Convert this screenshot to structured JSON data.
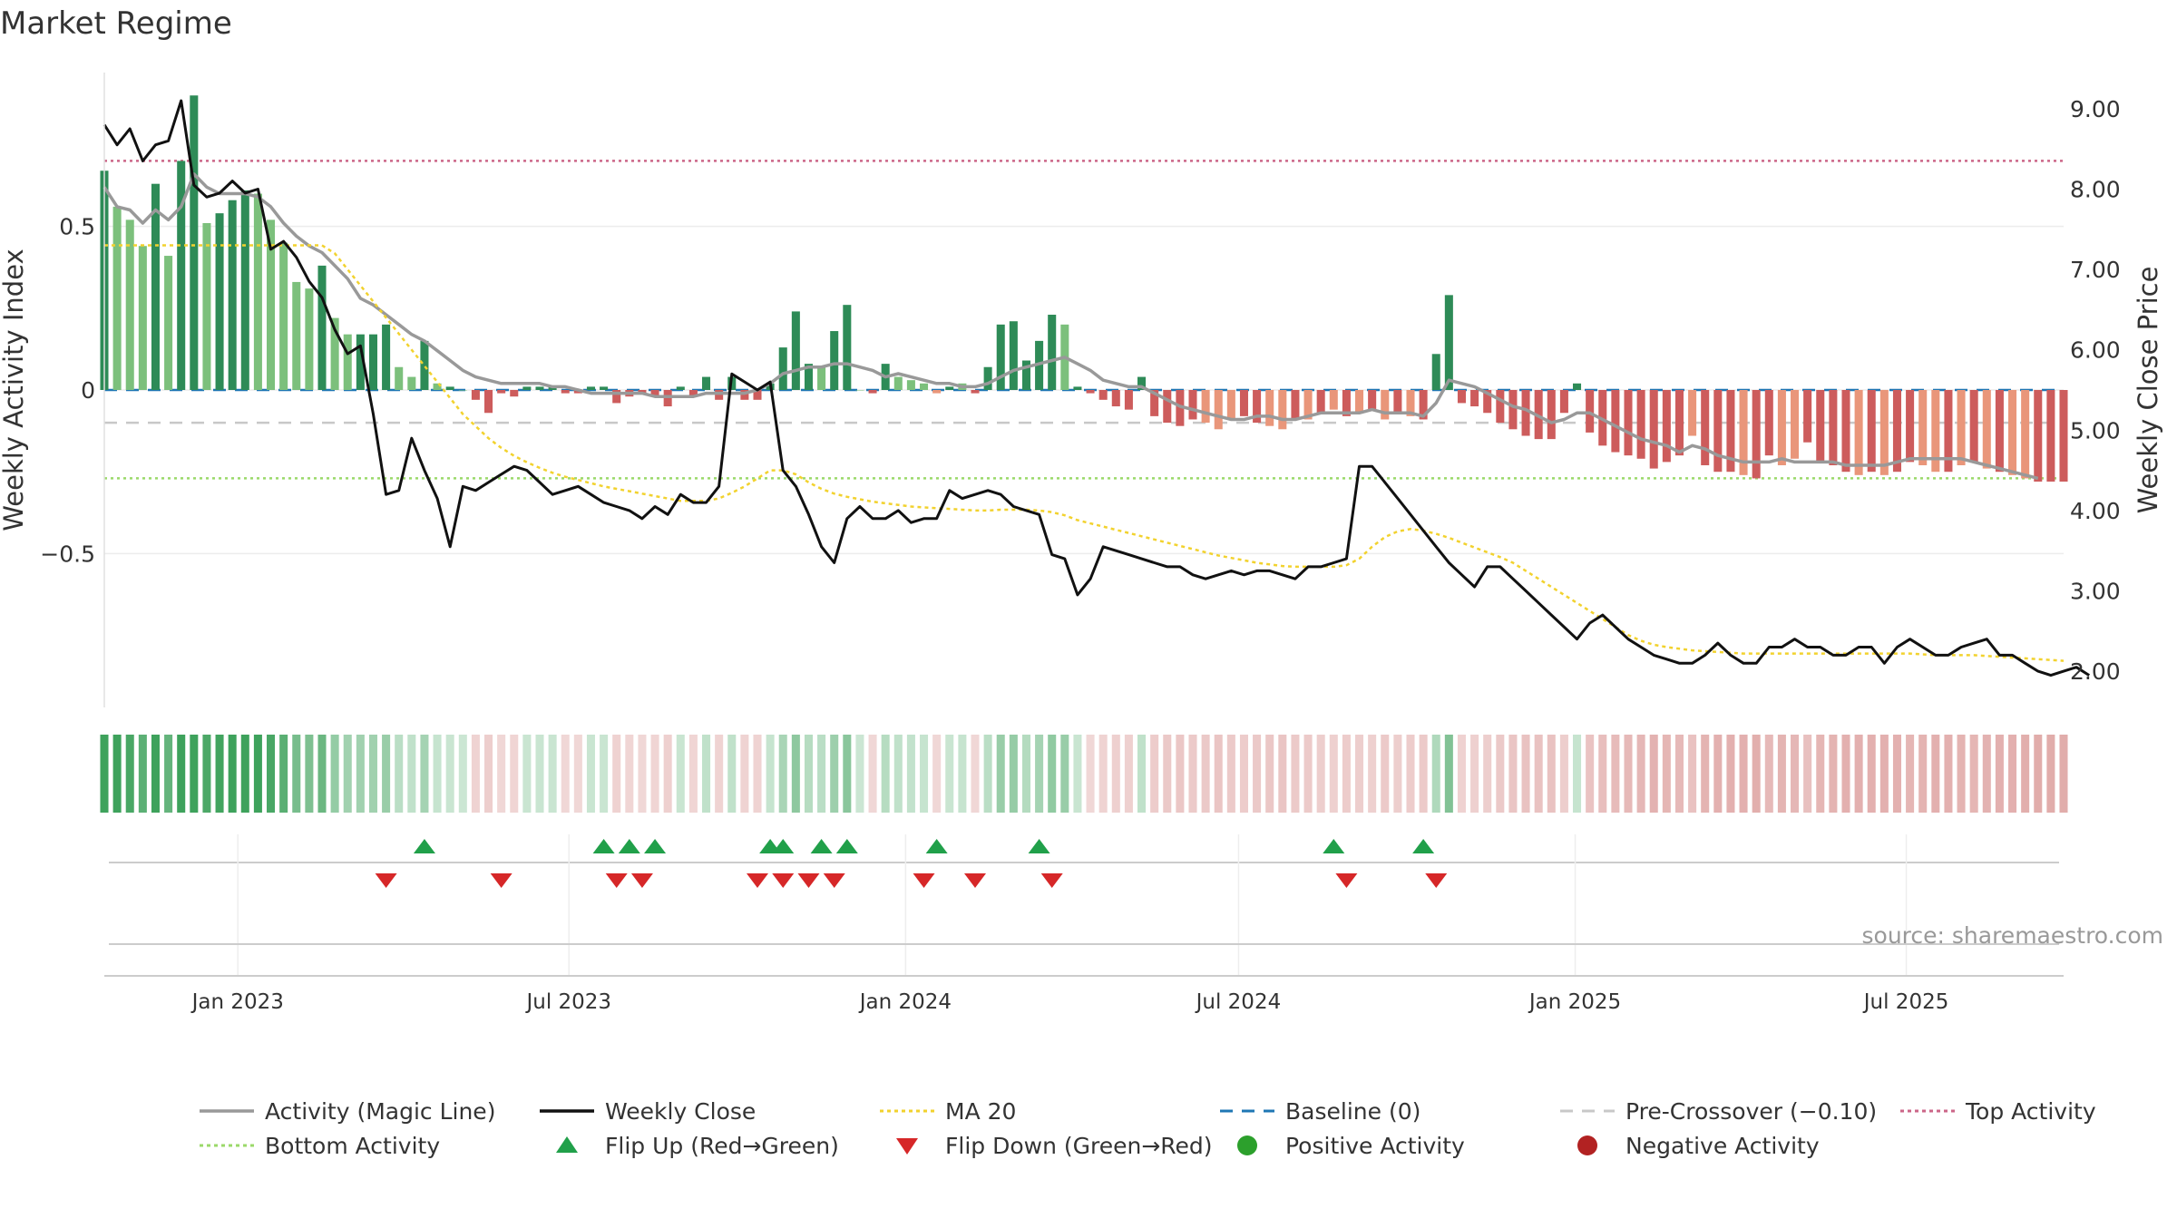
{
  "title": "Market Regime",
  "source": "source: sharemaestro.com",
  "chart_data": {
    "type": "bar",
    "left_axis": {
      "label": "Weekly Activity Index",
      "ylim": [
        -0.97,
        0.97
      ],
      "ticks": [
        0.5,
        0,
        -0.5
      ],
      "tick_labels": [
        "0.5",
        "0",
        "−0.5"
      ]
    },
    "right_axis": {
      "label": "Weekly Close Price",
      "ylim": [
        1.55,
        9.45
      ],
      "ticks": [
        2,
        3,
        4,
        5,
        6,
        7,
        8,
        9
      ],
      "tick_labels": [
        "2.00",
        "3.00",
        "4.00",
        "5.00",
        "6.00",
        "7.00",
        "8.00",
        "9.00"
      ]
    },
    "x_axis": {
      "start": "2022-10-20",
      "end": "2025-09-25",
      "ticks": [
        "2023-01-01",
        "2023-07-01",
        "2024-01-01",
        "2024-07-01",
        "2025-01-01",
        "2025-07-01"
      ],
      "tick_labels": [
        "Jan 2023",
        "Jul 2023",
        "Jan 2024",
        "Jul 2024",
        "Jan 2025",
        "Jul 2025"
      ]
    },
    "reference_lines": {
      "top_activity": 0.7,
      "bottom_activity": -0.27,
      "pre_crossover": -0.1,
      "baseline": 0
    },
    "weeks": {
      "start": "2022-10-20",
      "interval_days": 7,
      "count": 154
    },
    "activity": [
      0.67,
      0.56,
      0.52,
      0.44,
      0.63,
      0.41,
      0.7,
      0.9,
      0.51,
      0.54,
      0.58,
      0.61,
      0.6,
      0.52,
      0.45,
      0.33,
      0.31,
      0.38,
      0.22,
      0.17,
      0.17,
      0.17,
      0.2,
      0.07,
      0.04,
      0.15,
      0.02,
      0.01,
      0,
      -0.03,
      -0.07,
      -0.01,
      -0.02,
      0.01,
      0.01,
      0.01,
      -0.01,
      -0.01,
      0.01,
      0.01,
      -0.04,
      -0.02,
      -0.01,
      -0.02,
      -0.05,
      0.01,
      -0.02,
      0.04,
      -0.03,
      0.04,
      -0.03,
      -0.03,
      0.02,
      0.13,
      0.24,
      0.08,
      0.07,
      0.18,
      0.26,
      0,
      -0.01,
      0.08,
      0.04,
      0.03,
      0.02,
      -0.01,
      0.01,
      0.02,
      -0.01,
      0.07,
      0.2,
      0.21,
      0.09,
      0.15,
      0.23,
      0.2,
      0.01,
      -0.01,
      -0.03,
      -0.05,
      -0.06,
      0.04,
      -0.08,
      -0.1,
      -0.11,
      -0.09,
      -0.1,
      -0.12,
      -0.09,
      -0.08,
      -0.1,
      -0.11,
      -0.12,
      -0.09,
      -0.09,
      -0.07,
      -0.06,
      -0.08,
      -0.07,
      -0.06,
      -0.09,
      -0.07,
      -0.08,
      -0.09,
      0.11,
      0.29,
      -0.04,
      -0.05,
      -0.07,
      -0.1,
      -0.12,
      -0.14,
      -0.15,
      -0.15,
      -0.07,
      0.02,
      -0.13,
      -0.17,
      -0.19,
      -0.2,
      -0.21,
      -0.24,
      -0.22,
      -0.2,
      -0.14,
      -0.23,
      -0.25,
      -0.25,
      -0.26,
      -0.27,
      -0.2,
      -0.23,
      -0.21,
      -0.16,
      -0.22,
      -0.23,
      -0.25,
      -0.26,
      -0.25,
      -0.26,
      -0.25,
      -0.22,
      -0.23,
      -0.25,
      -0.25,
      -0.23,
      -0.22,
      -0.24,
      -0.25,
      -0.26,
      -0.27,
      -0.28,
      -0.28,
      -0.28
    ],
    "activity_strong": [
      1,
      0,
      0,
      0,
      1,
      0,
      1,
      1,
      0,
      1,
      1,
      1,
      0,
      0,
      0,
      0,
      0,
      1,
      0,
      0,
      1,
      1,
      1,
      0,
      0,
      1,
      0,
      1,
      0,
      1,
      1,
      1,
      1,
      1,
      1,
      1,
      1,
      1,
      1,
      1,
      1,
      1,
      1,
      1,
      1,
      1,
      1,
      1,
      1,
      1,
      1,
      1,
      1,
      1,
      1,
      1,
      0,
      1,
      1,
      0,
      1,
      1,
      0,
      0,
      0,
      0,
      1,
      0,
      1,
      1,
      1,
      1,
      1,
      1,
      1,
      0,
      1,
      1,
      1,
      1,
      1,
      1,
      1,
      1,
      1,
      1,
      0,
      0,
      0,
      1,
      1,
      0,
      0,
      1,
      0,
      1,
      0,
      1,
      0,
      1,
      0,
      1,
      0,
      1,
      1,
      1,
      1,
      1,
      1,
      1,
      1,
      1,
      1,
      1,
      1,
      1,
      1,
      1,
      1,
      1,
      1,
      1,
      1,
      1,
      0,
      1,
      1,
      1,
      0,
      1,
      1,
      0,
      0,
      1,
      1,
      1,
      1,
      0,
      1,
      0,
      1,
      1,
      0,
      0,
      1,
      0,
      1,
      0,
      1,
      0,
      0,
      1,
      1,
      1
    ],
    "magic_line": [
      0.62,
      0.56,
      0.55,
      0.51,
      0.55,
      0.52,
      0.56,
      0.66,
      0.62,
      0.6,
      0.6,
      0.6,
      0.59,
      0.56,
      0.51,
      0.47,
      0.44,
      0.42,
      0.38,
      0.34,
      0.28,
      0.26,
      0.23,
      0.2,
      0.17,
      0.15,
      0.12,
      0.09,
      0.06,
      0.04,
      0.03,
      0.02,
      0.02,
      0.02,
      0.02,
      0.01,
      0.01,
      0,
      -0.01,
      -0.01,
      -0.01,
      -0.01,
      -0.01,
      -0.02,
      -0.02,
      -0.02,
      -0.02,
      -0.01,
      -0.01,
      -0.01,
      -0.01,
      0,
      0.02,
      0.05,
      0.06,
      0.07,
      0.07,
      0.08,
      0.08,
      0.07,
      0.06,
      0.04,
      0.05,
      0.04,
      0.03,
      0.02,
      0.02,
      0.01,
      0.01,
      0.02,
      0.04,
      0.06,
      0.07,
      0.08,
      0.09,
      0.1,
      0.08,
      0.06,
      0.03,
      0.02,
      0.01,
      0.01,
      -0.01,
      -0.03,
      -0.05,
      -0.06,
      -0.07,
      -0.08,
      -0.09,
      -0.09,
      -0.08,
      -0.08,
      -0.09,
      -0.09,
      -0.08,
      -0.07,
      -0.07,
      -0.07,
      -0.07,
      -0.06,
      -0.07,
      -0.07,
      -0.07,
      -0.08,
      -0.04,
      0.03,
      0.02,
      0.01,
      -0.01,
      -0.03,
      -0.05,
      -0.06,
      -0.08,
      -0.1,
      -0.09,
      -0.07,
      -0.07,
      -0.09,
      -0.11,
      -0.13,
      -0.15,
      -0.16,
      -0.17,
      -0.19,
      -0.17,
      -0.18,
      -0.2,
      -0.21,
      -0.22,
      -0.22,
      -0.22,
      -0.21,
      -0.22,
      -0.22,
      -0.22,
      -0.22,
      -0.23,
      -0.23,
      -0.23,
      -0.23,
      -0.22,
      -0.21,
      -0.21,
      -0.21,
      -0.21,
      -0.21,
      -0.22,
      -0.23,
      -0.24,
      -0.25,
      -0.26,
      -0.27
    ],
    "weekly_close": [
      8.8,
      8.55,
      8.75,
      8.35,
      8.55,
      8.6,
      9.1,
      8.05,
      7.9,
      7.95,
      8.1,
      7.95,
      8.0,
      7.25,
      7.35,
      7.15,
      6.85,
      6.65,
      6.25,
      5.95,
      6.05,
      5.2,
      4.2,
      4.25,
      4.9,
      4.5,
      4.15,
      3.55,
      4.3,
      4.25,
      4.35,
      4.45,
      4.55,
      4.5,
      4.35,
      4.2,
      4.25,
      4.3,
      4.2,
      4.1,
      4.05,
      4.0,
      3.9,
      4.05,
      3.95,
      4.2,
      4.1,
      4.1,
      4.3,
      5.7,
      5.6,
      5.5,
      5.6,
      4.5,
      4.3,
      3.95,
      3.55,
      3.35,
      3.9,
      4.05,
      3.9,
      3.9,
      4.0,
      3.85,
      3.9,
      3.9,
      4.25,
      4.15,
      4.2,
      4.25,
      4.2,
      4.05,
      4.0,
      3.95,
      3.45,
      3.4,
      2.95,
      3.15,
      3.55,
      3.5,
      3.45,
      3.4,
      3.35,
      3.3,
      3.3,
      3.2,
      3.15,
      3.2,
      3.25,
      3.2,
      3.25,
      3.25,
      3.2,
      3.15,
      3.3,
      3.3,
      3.35,
      3.4,
      4.55,
      4.55,
      4.35,
      4.15,
      3.95,
      3.75,
      3.55,
      3.35,
      3.2,
      3.05,
      3.3,
      3.3,
      3.15,
      3.0,
      2.85,
      2.7,
      2.55,
      2.4,
      2.6,
      2.7,
      2.55,
      2.4,
      2.3,
      2.2,
      2.15,
      2.1,
      2.1,
      2.2,
      2.35,
      2.2,
      2.1,
      2.1,
      2.3,
      2.3,
      2.4,
      2.3,
      2.3,
      2.2,
      2.2,
      2.3,
      2.3,
      2.1,
      2.3,
      2.4,
      2.3,
      2.2,
      2.2,
      2.3,
      2.35,
      2.4,
      2.2,
      2.2,
      2.1,
      2.0,
      1.95,
      2.0,
      2.05,
      1.95
    ],
    "ma20": [
      7.3,
      7.3,
      7.3,
      7.3,
      7.3,
      7.3,
      7.3,
      7.3,
      7.3,
      7.3,
      7.3,
      7.3,
      7.3,
      7.3,
      7.3,
      7.3,
      7.3,
      7.3,
      7.2,
      7.0,
      6.8,
      6.6,
      6.4,
      6.2,
      6.0,
      5.8,
      5.6,
      5.4,
      5.2,
      5.05,
      4.9,
      4.78,
      4.68,
      4.6,
      4.53,
      4.47,
      4.42,
      4.38,
      4.34,
      4.3,
      4.27,
      4.24,
      4.21,
      4.18,
      4.15,
      4.12,
      4.12,
      4.12,
      4.15,
      4.22,
      4.3,
      4.4,
      4.5,
      4.5,
      4.45,
      4.35,
      4.27,
      4.21,
      4.17,
      4.14,
      4.11,
      4.09,
      4.07,
      4.05,
      4.04,
      4.03,
      4.02,
      4.01,
      4.0,
      4.0,
      4.01,
      4.01,
      4.01,
      4.0,
      3.98,
      3.94,
      3.88,
      3.84,
      3.8,
      3.76,
      3.72,
      3.68,
      3.64,
      3.6,
      3.56,
      3.52,
      3.48,
      3.44,
      3.41,
      3.38,
      3.35,
      3.33,
      3.31,
      3.3,
      3.3,
      3.3,
      3.3,
      3.32,
      3.4,
      3.55,
      3.67,
      3.74,
      3.77,
      3.75,
      3.71,
      3.66,
      3.6,
      3.54,
      3.48,
      3.42,
      3.35,
      3.25,
      3.15,
      3.05,
      2.95,
      2.85,
      2.75,
      2.65,
      2.55,
      2.45,
      2.38,
      2.33,
      2.3,
      2.28,
      2.26,
      2.25,
      2.24,
      2.23,
      2.22,
      2.22,
      2.22,
      2.22,
      2.22,
      2.22,
      2.22,
      2.22,
      2.22,
      2.22,
      2.22,
      2.22,
      2.22,
      2.22,
      2.21,
      2.2,
      2.2,
      2.2,
      2.2,
      2.19,
      2.18,
      2.17,
      2.16,
      2.15,
      2.14,
      2.13
    ],
    "flips_up": [
      "2023-04-13",
      "2023-07-20",
      "2023-08-03",
      "2023-08-17",
      "2023-10-19",
      "2023-10-26",
      "2023-11-16",
      "2023-11-30",
      "2024-01-18",
      "2024-03-14",
      "2024-08-22",
      "2024-10-10"
    ],
    "flips_down": [
      "2023-03-23",
      "2023-05-25",
      "2023-07-27",
      "2023-08-10",
      "2023-10-12",
      "2023-10-26",
      "2023-11-09",
      "2023-11-23",
      "2024-01-11",
      "2024-02-08",
      "2024-03-21",
      "2024-08-29",
      "2024-10-17"
    ],
    "legend": [
      {
        "label": "Activity (Magic Line)",
        "symbol": "line",
        "color": "#999999"
      },
      {
        "label": "Weekly Close",
        "symbol": "line",
        "color": "#111111"
      },
      {
        "label": "MA 20",
        "symbol": "dotted",
        "color": "#f2d22e"
      },
      {
        "label": "Baseline (0)",
        "symbol": "dashed",
        "color": "#1f77b4"
      },
      {
        "label": "Pre-Crossover (−0.10)",
        "symbol": "dashed",
        "color": "#c8c8c8"
      },
      {
        "label": "Top Activity",
        "symbol": "dotted",
        "color": "#cc6688"
      },
      {
        "label": "Bottom Activity",
        "symbol": "dotted",
        "color": "#9bd96a"
      },
      {
        "label": "Flip Up (Red→Green)",
        "symbol": "triangle-up",
        "color": "#21a04a"
      },
      {
        "label": "Flip Down (Green→Red)",
        "symbol": "triangle-down",
        "color": "#d62728"
      },
      {
        "label": "Positive Activity",
        "symbol": "circle",
        "color": "#2ca02c"
      },
      {
        "label": "Negative Activity",
        "symbol": "circle",
        "color": "#b22222"
      }
    ],
    "legend_placement": "bottom",
    "colors": {
      "pos_strong": "#2e8b57",
      "pos_light": "#7cc07c",
      "neg_strong": "#cd5c5c",
      "neg_light": "#e9967a",
      "magic_line": "#999999",
      "close": "#111111",
      "ma20": "#f2d22e",
      "baseline": "#1f77b4",
      "precross": "#c8c8c8",
      "top": "#cc6688",
      "bottom": "#9bd96a",
      "flip_up": "#21a04a",
      "flip_down": "#d62728"
    }
  }
}
